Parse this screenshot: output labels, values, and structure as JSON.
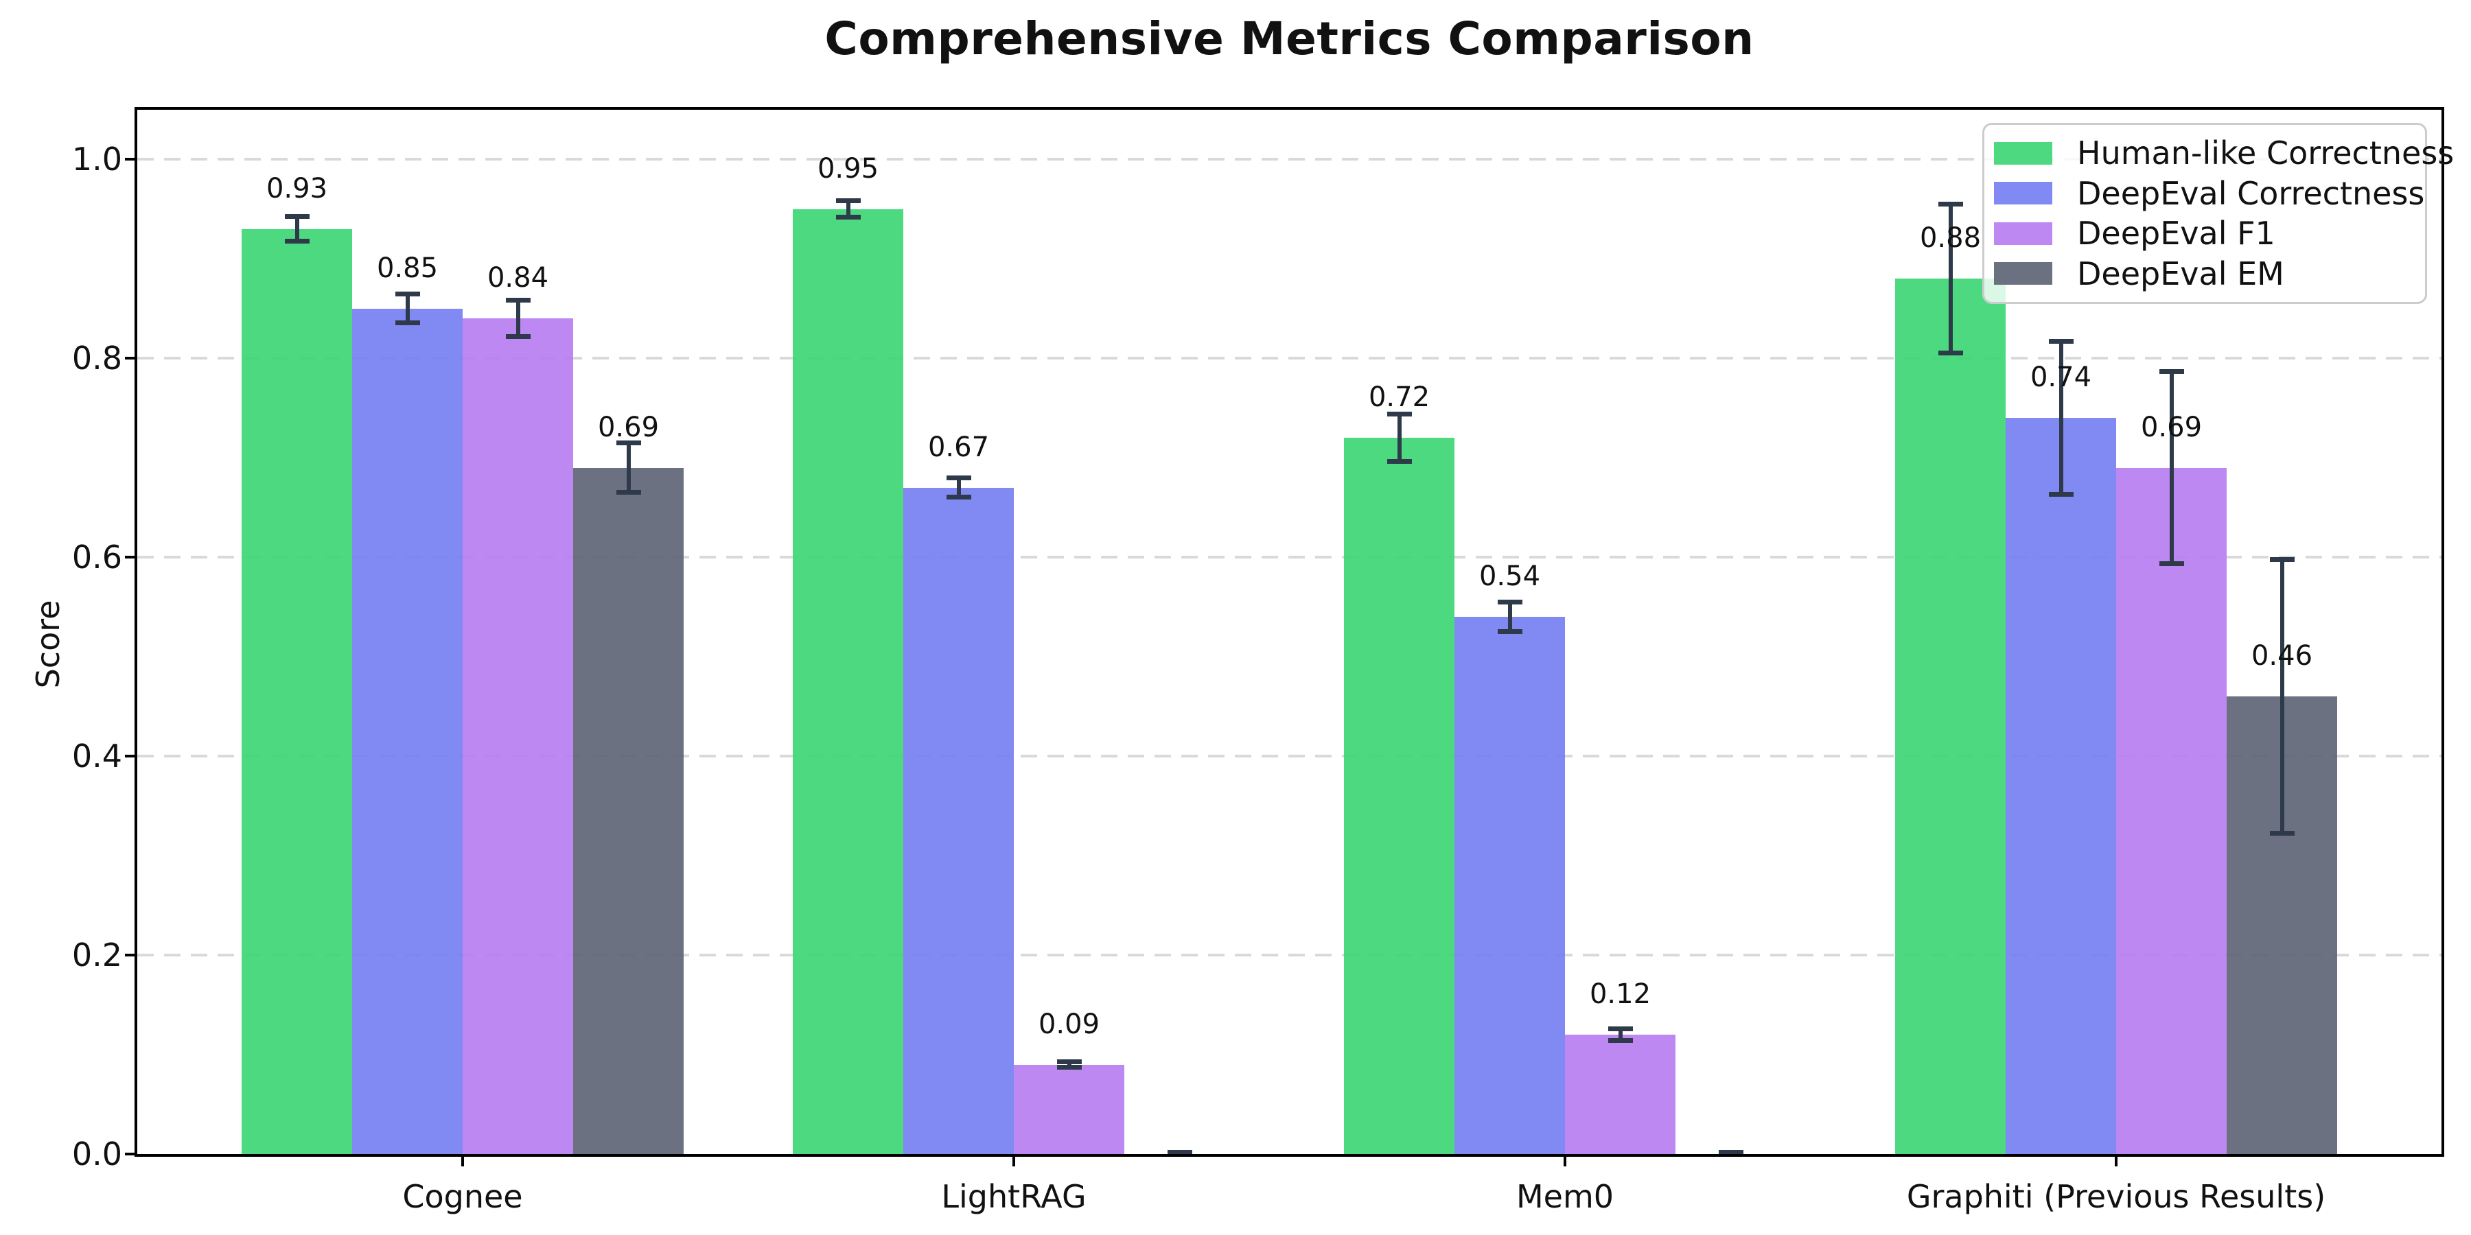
{
  "chart_data": {
    "type": "bar",
    "title": "Comprehensive Metrics Comparison",
    "ylabel": "Score",
    "xlabel": "",
    "ylim": [
      0,
      1.05
    ],
    "yticks": [
      "0.0",
      "0.2",
      "0.4",
      "0.6",
      "0.8",
      "1.0"
    ],
    "grid": "horizontal dashed",
    "legend_position": "upper right",
    "background_color": "#ffffff",
    "error_bar_color": "#2e3a4a",
    "gridline_color": "#d9d9d9",
    "categories": [
      "Cognee",
      "LightRAG",
      "Mem0",
      "Graphiti (Previous Results)"
    ],
    "series": [
      {
        "name": "Human-like Correctness",
        "color": "#39d572",
        "values": [
          0.93,
          0.95,
          0.72,
          0.88
        ],
        "errors": [
          0.015,
          0.011,
          0.026,
          0.077
        ],
        "bar_labels": [
          "0.93",
          "0.95",
          "0.72",
          "0.88"
        ]
      },
      {
        "name": "DeepEval Correctness",
        "color": "#737cf1",
        "values": [
          0.85,
          0.67,
          0.54,
          0.74
        ],
        "errors": [
          0.017,
          0.012,
          0.017,
          0.079
        ],
        "bar_labels": [
          "0.85",
          "0.67",
          "0.54",
          "0.74"
        ]
      },
      {
        "name": "DeepEval F1",
        "color": "#b67bf1",
        "values": [
          0.84,
          0.09,
          0.12,
          0.69
        ],
        "errors": [
          0.021,
          0.005,
          0.008,
          0.099
        ],
        "bar_labels": [
          "0.84",
          "0.09",
          "0.12",
          "0.69"
        ]
      },
      {
        "name": "DeepEval EM",
        "color": "#5b6272",
        "values": [
          0.69,
          0.0,
          0.0,
          0.46
        ],
        "errors": [
          0.027,
          0.004,
          0.004,
          0.14
        ],
        "bar_labels": [
          "0.69",
          "",
          "",
          "0.46"
        ]
      }
    ]
  }
}
